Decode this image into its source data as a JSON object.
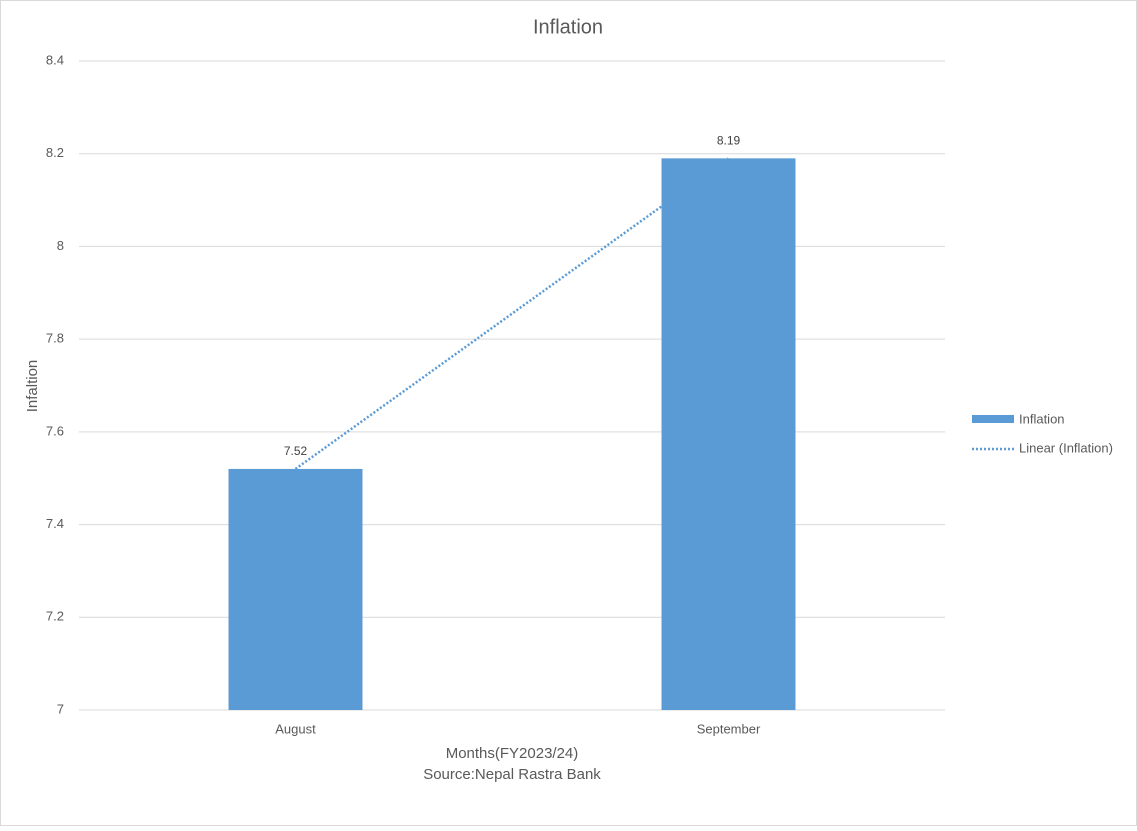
{
  "chart_data": {
    "type": "bar",
    "title": "Inflation",
    "categories": [
      "August",
      "September"
    ],
    "series": [
      {
        "name": "Inflation",
        "color": "#5b9bd5",
        "values": [
          7.52,
          8.19
        ]
      }
    ],
    "trendline": {
      "name": "Linear (Inflation)",
      "type": "linear",
      "color": "#5b9bd5"
    },
    "ylim": [
      7,
      8.4
    ],
    "yticks": [
      7,
      7.2,
      7.4,
      7.6,
      7.8,
      8,
      8.2,
      8.4
    ],
    "grid": true,
    "y_label": "Infaltion",
    "x_label": [
      "Months(FY2023/24)",
      "Source:Nepal Rastra Bank"
    ],
    "legend": "right",
    "data_labels": true
  }
}
